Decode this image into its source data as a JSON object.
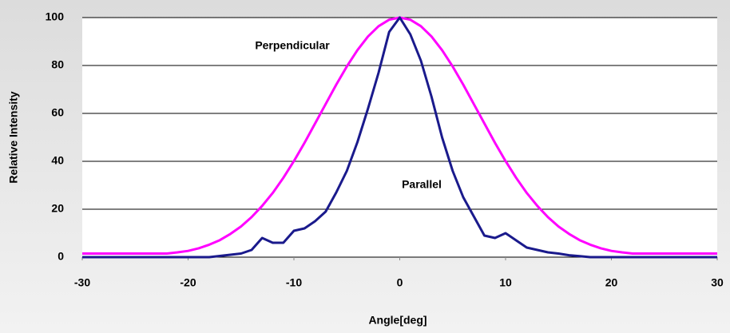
{
  "chart_data": {
    "type": "line",
    "xlabel": "Angle[deg]",
    "ylabel": "Relative Intensity",
    "annotations": [
      "Perpendicular",
      "Parallel"
    ],
    "x": [
      -30,
      -29,
      -28,
      -27,
      -26,
      -25,
      -24,
      -23,
      -22,
      -21,
      -20,
      -19,
      -18,
      -17,
      -16,
      -15,
      -14,
      -13,
      -12,
      -11,
      -10,
      -9,
      -8,
      -7,
      -6,
      -5,
      -4,
      -3,
      -2,
      -1,
      0,
      1,
      2,
      3,
      4,
      5,
      6,
      7,
      8,
      9,
      10,
      11,
      12,
      13,
      14,
      15,
      16,
      17,
      18,
      19,
      20,
      21,
      22,
      23,
      24,
      25,
      26,
      27,
      28,
      29,
      30
    ],
    "series": [
      {
        "name": "Perpendicular",
        "color": "#ff00ff",
        "values": [
          1.5,
          1.5,
          1.5,
          1.5,
          1.5,
          1.5,
          1.5,
          1.5,
          1.5,
          2.0,
          2.6,
          3.7,
          5.2,
          7.1,
          9.7,
          12.8,
          16.7,
          21.4,
          26.8,
          33.1,
          40.1,
          47.7,
          55.8,
          63.9,
          72.0,
          79.6,
          86.4,
          92.1,
          96.4,
          99.1,
          100,
          99.1,
          96.4,
          92.1,
          86.4,
          79.6,
          72.0,
          63.9,
          55.8,
          47.7,
          40.1,
          33.1,
          26.8,
          21.4,
          16.7,
          12.8,
          9.7,
          7.1,
          5.2,
          3.7,
          2.6,
          2.0,
          1.5,
          1.5,
          1.5,
          1.5,
          1.5,
          1.5,
          1.5,
          1.5,
          1.5
        ]
      },
      {
        "name": "Parallel",
        "color": "#1a1a8c",
        "values": [
          0,
          0,
          0,
          0,
          0,
          0,
          0,
          0,
          0,
          0,
          0,
          0,
          0,
          0.5,
          1,
          1.5,
          3,
          8,
          6,
          6,
          11,
          12,
          15,
          19,
          27,
          36,
          48,
          62,
          77,
          94,
          100,
          93,
          82,
          67,
          50,
          36,
          25,
          17,
          9,
          8,
          10,
          7,
          4,
          3,
          2,
          1.5,
          0.8,
          0.4,
          0,
          0,
          0,
          0,
          0,
          0,
          0,
          0,
          0,
          0,
          0,
          0,
          0
        ]
      }
    ],
    "xlim": [
      -30,
      30
    ],
    "xticks": [
      -30,
      -20,
      -10,
      0,
      10,
      20,
      30
    ],
    "ylim": [
      0,
      100
    ],
    "yticks": [
      0,
      20,
      40,
      60,
      80,
      100
    ],
    "grid": true
  }
}
